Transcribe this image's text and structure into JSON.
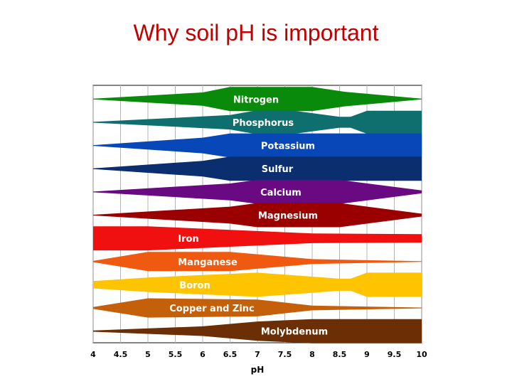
{
  "slide": {
    "title": "Why soil pH is important"
  },
  "chart_data": {
    "type": "band-chart",
    "title": "",
    "xlabel": "pH",
    "ylabel": "",
    "xlim": [
      4,
      10
    ],
    "x_ticks": [
      "4",
      "4.5",
      "5",
      "5.5",
      "6",
      "6.5",
      "7",
      "7.5",
      "8",
      "8.5",
      "9",
      "9.5",
      "10"
    ],
    "grid": true,
    "series": [
      {
        "name": "Nitrogen",
        "color": "#0a8a0a",
        "profile": [
          [
            4,
            0.03
          ],
          [
            6,
            0.55
          ],
          [
            6.5,
            1.0
          ],
          [
            8,
            1.0
          ],
          [
            8.6,
            0.6
          ],
          [
            10,
            0.03
          ]
        ]
      },
      {
        "name": "Phosphorus",
        "color": "#0f6f6f",
        "profile": [
          [
            4,
            0.03
          ],
          [
            6.5,
            0.6
          ],
          [
            7,
            1.0
          ],
          [
            7.6,
            1.0
          ],
          [
            8.5,
            0.45
          ],
          [
            8.7,
            0.45
          ],
          [
            9,
            0.95
          ],
          [
            10,
            0.95
          ]
        ]
      },
      {
        "name": "Potassium",
        "color": "#0747b8",
        "profile": [
          [
            4,
            0.03
          ],
          [
            6,
            0.65
          ],
          [
            6.5,
            1.0
          ],
          [
            10,
            1.0
          ]
        ]
      },
      {
        "name": "Sulfur",
        "color": "#0a2e6e",
        "profile": [
          [
            4,
            0.03
          ],
          [
            6,
            0.65
          ],
          [
            6.5,
            1.0
          ],
          [
            10,
            1.0
          ]
        ]
      },
      {
        "name": "Calcium",
        "color": "#6a0a82",
        "profile": [
          [
            4,
            0.03
          ],
          [
            6.5,
            0.7
          ],
          [
            7,
            1.0
          ],
          [
            8.5,
            1.0
          ],
          [
            10,
            0.12
          ]
        ]
      },
      {
        "name": "Magnesium",
        "color": "#9b0000",
        "profile": [
          [
            4,
            0.03
          ],
          [
            6.5,
            0.7
          ],
          [
            7,
            1.0
          ],
          [
            8.5,
            1.0
          ],
          [
            10,
            0.12
          ]
        ]
      },
      {
        "name": "Iron",
        "color": "#f01010",
        "profile": [
          [
            4,
            1.0
          ],
          [
            5,
            1.0
          ],
          [
            8,
            0.4
          ],
          [
            10,
            0.35
          ]
        ]
      },
      {
        "name": "Manganese",
        "color": "#f05a10",
        "profile": [
          [
            4,
            0.05
          ],
          [
            5,
            0.8
          ],
          [
            6.5,
            0.8
          ],
          [
            8,
            0.2
          ],
          [
            10,
            0.03
          ]
        ]
      },
      {
        "name": "Boron",
        "color": "#ffc400",
        "profile": [
          [
            4,
            0.3
          ],
          [
            5,
            0.6
          ],
          [
            7,
            1.0
          ],
          [
            8.5,
            0.5
          ],
          [
            8.7,
            0.5
          ],
          [
            9,
            1.0
          ],
          [
            10,
            1.0
          ]
        ]
      },
      {
        "name": "Copper and Zinc",
        "color": "#c4600a",
        "profile": [
          [
            4,
            0.08
          ],
          [
            5,
            0.8
          ],
          [
            7,
            0.7
          ],
          [
            8,
            0.2
          ],
          [
            10,
            0.03
          ]
        ]
      },
      {
        "name": "Molybdenum",
        "color": "#6b2e05",
        "profile": [
          [
            4,
            0.05
          ],
          [
            6,
            0.4
          ],
          [
            7,
            0.8
          ],
          [
            8,
            1.0
          ],
          [
            10,
            1.0
          ]
        ]
      }
    ]
  }
}
